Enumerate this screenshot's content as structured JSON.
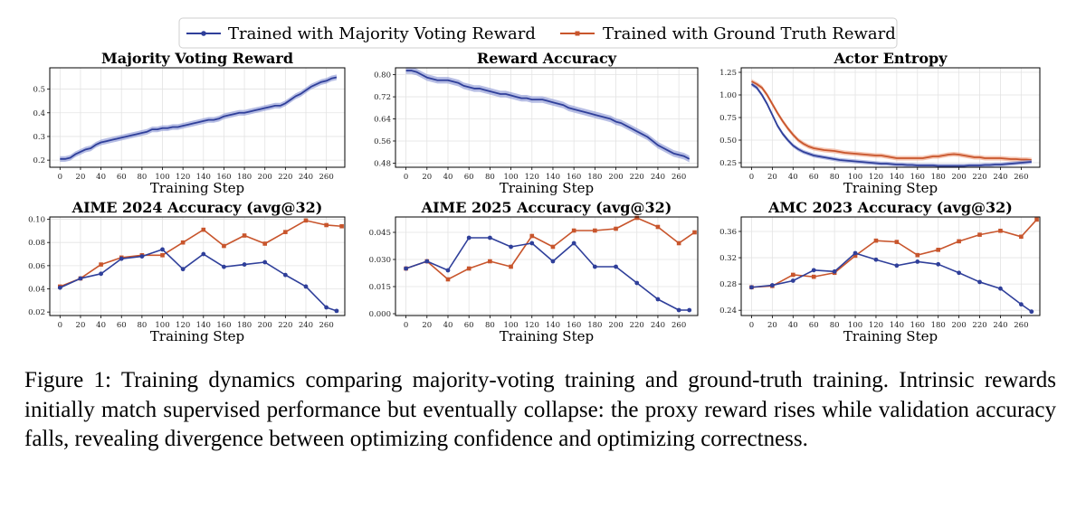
{
  "legend": {
    "majority_label": "Trained with Majority Voting Reward",
    "gt_label": "Trained with Ground Truth Reward"
  },
  "colors": {
    "majority": "#2f3f9a",
    "gt": "#c8552c",
    "band_majority": "#8f9ad6",
    "band_gt": "#f0a88b",
    "grid": "#e3e3e3"
  },
  "caption": "Figure 1: Training dynamics comparing majority-voting training and ground-truth training. Intrinsic rewards initially match supervised performance but eventually collapse: the proxy reward rises while validation accuracy falls, revealing divergence between optimizing confidence and optimizing correctness.",
  "chart_data": [
    {
      "type": "line",
      "title": "Majority Voting Reward",
      "xlabel": "Training Step",
      "ylabel": "",
      "xlim": [
        -10,
        278
      ],
      "ylim": [
        0.17,
        0.59
      ],
      "xticks": [
        0,
        20,
        40,
        60,
        80,
        100,
        120,
        140,
        160,
        180,
        200,
        220,
        240,
        260
      ],
      "yticks": [
        0.2,
        0.3,
        0.4,
        0.5
      ],
      "ytick_labels": [
        "0.2",
        "0.3",
        "0.4",
        "0.5"
      ],
      "grid": true,
      "series": [
        {
          "name": "Trained with Majority Voting Reward",
          "style": "band",
          "x": [
            0,
            5,
            10,
            15,
            20,
            25,
            30,
            35,
            40,
            45,
            50,
            55,
            60,
            65,
            70,
            75,
            80,
            85,
            90,
            95,
            100,
            105,
            110,
            115,
            120,
            125,
            130,
            135,
            140,
            145,
            150,
            155,
            160,
            165,
            170,
            175,
            180,
            185,
            190,
            195,
            200,
            205,
            210,
            215,
            220,
            225,
            230,
            235,
            240,
            245,
            250,
            255,
            260,
            265,
            270
          ],
          "y": [
            0.205,
            0.205,
            0.21,
            0.225,
            0.235,
            0.245,
            0.25,
            0.265,
            0.275,
            0.28,
            0.285,
            0.29,
            0.295,
            0.3,
            0.305,
            0.31,
            0.315,
            0.32,
            0.33,
            0.33,
            0.335,
            0.335,
            0.34,
            0.34,
            0.345,
            0.35,
            0.355,
            0.36,
            0.365,
            0.37,
            0.37,
            0.375,
            0.385,
            0.39,
            0.395,
            0.4,
            0.4,
            0.405,
            0.41,
            0.415,
            0.42,
            0.425,
            0.43,
            0.43,
            0.44,
            0.455,
            0.47,
            0.48,
            0.495,
            0.51,
            0.52,
            0.53,
            0.535,
            0.545,
            0.55
          ],
          "band": 0.012
        }
      ]
    },
    {
      "type": "line",
      "title": "Reward Accuracy",
      "xlabel": "Training Step",
      "ylabel": "",
      "xlim": [
        -10,
        278
      ],
      "ylim": [
        0.465,
        0.825
      ],
      "xticks": [
        0,
        20,
        40,
        60,
        80,
        100,
        120,
        140,
        160,
        180,
        200,
        220,
        240,
        260
      ],
      "yticks": [
        0.48,
        0.56,
        0.64,
        0.72,
        0.8
      ],
      "ytick_labels": [
        "0.48",
        "0.56",
        "0.64",
        "0.72",
        "0.80"
      ],
      "grid": true,
      "series": [
        {
          "name": "Trained with Majority Voting Reward",
          "style": "band",
          "x": [
            0,
            5,
            10,
            15,
            20,
            25,
            30,
            35,
            40,
            45,
            50,
            55,
            60,
            65,
            70,
            75,
            80,
            85,
            90,
            95,
            100,
            105,
            110,
            115,
            120,
            125,
            130,
            135,
            140,
            145,
            150,
            155,
            160,
            165,
            170,
            175,
            180,
            185,
            190,
            195,
            200,
            205,
            210,
            215,
            220,
            225,
            230,
            235,
            240,
            245,
            250,
            255,
            260,
            265,
            270
          ],
          "y": [
            0.815,
            0.815,
            0.81,
            0.8,
            0.79,
            0.785,
            0.78,
            0.78,
            0.78,
            0.775,
            0.77,
            0.76,
            0.755,
            0.75,
            0.75,
            0.745,
            0.74,
            0.735,
            0.73,
            0.73,
            0.725,
            0.72,
            0.715,
            0.715,
            0.71,
            0.71,
            0.71,
            0.705,
            0.7,
            0.695,
            0.69,
            0.68,
            0.675,
            0.67,
            0.665,
            0.66,
            0.655,
            0.65,
            0.645,
            0.64,
            0.63,
            0.625,
            0.615,
            0.605,
            0.595,
            0.585,
            0.575,
            0.56,
            0.545,
            0.535,
            0.525,
            0.515,
            0.51,
            0.505,
            0.495
          ],
          "band": 0.012
        }
      ]
    },
    {
      "type": "line",
      "title": "Actor Entropy",
      "xlabel": "Training Step",
      "ylabel": "",
      "xlim": [
        -10,
        278
      ],
      "ylim": [
        0.2,
        1.3
      ],
      "xticks": [
        0,
        20,
        40,
        60,
        80,
        100,
        120,
        140,
        160,
        180,
        200,
        220,
        240,
        260
      ],
      "yticks": [
        0.25,
        0.5,
        0.75,
        1.0,
        1.25
      ],
      "ytick_labels": [
        "0.25",
        "0.50",
        "0.75",
        "1.00",
        "1.25"
      ],
      "grid": true,
      "series": [
        {
          "name": "Trained with Ground Truth Reward",
          "style": "band",
          "x": [
            0,
            5,
            10,
            15,
            20,
            25,
            30,
            35,
            40,
            45,
            50,
            55,
            60,
            65,
            70,
            75,
            80,
            85,
            90,
            95,
            100,
            105,
            110,
            115,
            120,
            125,
            130,
            135,
            140,
            145,
            150,
            155,
            160,
            165,
            170,
            175,
            180,
            185,
            190,
            195,
            200,
            205,
            210,
            215,
            220,
            225,
            230,
            235,
            240,
            245,
            250,
            255,
            260,
            265,
            270
          ],
          "y": [
            1.15,
            1.12,
            1.08,
            1.0,
            0.9,
            0.8,
            0.71,
            0.63,
            0.56,
            0.5,
            0.46,
            0.43,
            0.41,
            0.4,
            0.39,
            0.385,
            0.38,
            0.37,
            0.36,
            0.355,
            0.35,
            0.345,
            0.34,
            0.335,
            0.33,
            0.33,
            0.32,
            0.31,
            0.3,
            0.3,
            0.3,
            0.3,
            0.3,
            0.3,
            0.31,
            0.32,
            0.32,
            0.33,
            0.34,
            0.345,
            0.34,
            0.33,
            0.32,
            0.31,
            0.31,
            0.3,
            0.3,
            0.3,
            0.3,
            0.295,
            0.29,
            0.29,
            0.285,
            0.285,
            0.28
          ],
          "band": 0.025
        },
        {
          "name": "Trained with Majority Voting Reward",
          "style": "band",
          "x": [
            0,
            5,
            10,
            15,
            20,
            25,
            30,
            35,
            40,
            45,
            50,
            55,
            60,
            65,
            70,
            75,
            80,
            85,
            90,
            95,
            100,
            105,
            110,
            115,
            120,
            125,
            130,
            135,
            140,
            145,
            150,
            155,
            160,
            165,
            170,
            175,
            180,
            185,
            190,
            195,
            200,
            205,
            210,
            215,
            220,
            225,
            230,
            235,
            240,
            245,
            250,
            255,
            260,
            265,
            270
          ],
          "y": [
            1.12,
            1.08,
            1.0,
            0.9,
            0.78,
            0.66,
            0.57,
            0.5,
            0.44,
            0.4,
            0.37,
            0.35,
            0.33,
            0.32,
            0.31,
            0.3,
            0.29,
            0.28,
            0.275,
            0.27,
            0.265,
            0.26,
            0.255,
            0.25,
            0.245,
            0.24,
            0.24,
            0.235,
            0.23,
            0.23,
            0.225,
            0.225,
            0.22,
            0.22,
            0.22,
            0.22,
            0.215,
            0.215,
            0.215,
            0.215,
            0.215,
            0.215,
            0.22,
            0.22,
            0.22,
            0.225,
            0.225,
            0.23,
            0.23,
            0.235,
            0.24,
            0.245,
            0.25,
            0.255,
            0.26
          ],
          "band": 0.022
        }
      ]
    },
    {
      "type": "line",
      "title": "AIME 2024 Accuracy (avg@32)",
      "xlabel": "Training Step",
      "ylabel": "",
      "xlim": [
        -10,
        278
      ],
      "ylim": [
        0.017,
        0.102
      ],
      "xticks": [
        0,
        20,
        40,
        60,
        80,
        100,
        120,
        140,
        160,
        180,
        200,
        220,
        240,
        260
      ],
      "yticks": [
        0.02,
        0.04,
        0.06,
        0.08,
        0.1
      ],
      "ytick_labels": [
        "0.02",
        "0.04",
        "0.06",
        "0.08",
        "0.10"
      ],
      "grid": true,
      "series": [
        {
          "name": "Trained with Ground Truth Reward",
          "style": "markers",
          "x": [
            0,
            20,
            40,
            60,
            80,
            100,
            120,
            140,
            160,
            180,
            200,
            220,
            240,
            260,
            275
          ],
          "y": [
            0.042,
            0.049,
            0.061,
            0.067,
            0.069,
            0.069,
            0.08,
            0.091,
            0.077,
            0.086,
            0.079,
            0.089,
            0.099,
            0.095,
            0.094
          ]
        },
        {
          "name": "Trained with Majority Voting Reward",
          "style": "markers",
          "x": [
            0,
            20,
            40,
            60,
            80,
            100,
            120,
            140,
            160,
            180,
            200,
            220,
            240,
            260,
            270
          ],
          "y": [
            0.041,
            0.049,
            0.053,
            0.066,
            0.068,
            0.074,
            0.057,
            0.07,
            0.059,
            0.061,
            0.063,
            0.052,
            0.042,
            0.024,
            0.021
          ]
        }
      ]
    },
    {
      "type": "line",
      "title": "AIME 2025 Accuracy (avg@32)",
      "xlabel": "Training Step",
      "ylabel": "",
      "xlim": [
        -10,
        278
      ],
      "ylim": [
        -0.001,
        0.0535
      ],
      "xticks": [
        0,
        20,
        40,
        60,
        80,
        100,
        120,
        140,
        160,
        180,
        200,
        220,
        240,
        260
      ],
      "yticks": [
        0.0,
        0.015,
        0.03,
        0.045
      ],
      "ytick_labels": [
        "0.000",
        "0.015",
        "0.030",
        "0.045"
      ],
      "grid": true,
      "series": [
        {
          "name": "Trained with Ground Truth Reward",
          "style": "markers",
          "x": [
            0,
            20,
            40,
            60,
            80,
            100,
            120,
            140,
            160,
            180,
            200,
            220,
            240,
            260,
            275
          ],
          "y": [
            0.025,
            0.029,
            0.019,
            0.025,
            0.029,
            0.026,
            0.043,
            0.037,
            0.046,
            0.046,
            0.047,
            0.053,
            0.048,
            0.039,
            0.045
          ]
        },
        {
          "name": "Trained with Majority Voting Reward",
          "style": "markers",
          "x": [
            0,
            20,
            40,
            60,
            80,
            100,
            120,
            140,
            160,
            180,
            200,
            220,
            240,
            260,
            270
          ],
          "y": [
            0.025,
            0.029,
            0.024,
            0.042,
            0.042,
            0.037,
            0.039,
            0.029,
            0.039,
            0.026,
            0.026,
            0.017,
            0.008,
            0.002,
            0.002
          ]
        }
      ]
    },
    {
      "type": "line",
      "title": "AMC 2023 Accuracy (avg@32)",
      "xlabel": "Training Step",
      "ylabel": "",
      "xlim": [
        -10,
        278
      ],
      "ylim": [
        0.232,
        0.382
      ],
      "xticks": [
        0,
        20,
        40,
        60,
        80,
        100,
        120,
        140,
        160,
        180,
        200,
        220,
        240,
        260
      ],
      "yticks": [
        0.24,
        0.28,
        0.32,
        0.36
      ],
      "ytick_labels": [
        "0.24",
        "0.28",
        "0.32",
        "0.36"
      ],
      "grid": true,
      "series": [
        {
          "name": "Trained with Ground Truth Reward",
          "style": "markers",
          "x": [
            0,
            20,
            40,
            60,
            80,
            100,
            120,
            140,
            160,
            180,
            200,
            220,
            240,
            260,
            275
          ],
          "y": [
            0.275,
            0.277,
            0.294,
            0.291,
            0.297,
            0.323,
            0.346,
            0.344,
            0.324,
            0.332,
            0.345,
            0.355,
            0.361,
            0.352,
            0.378
          ]
        },
        {
          "name": "Trained with Majority Voting Reward",
          "style": "markers",
          "x": [
            0,
            20,
            40,
            60,
            80,
            100,
            120,
            140,
            160,
            180,
            200,
            220,
            240,
            260,
            270
          ],
          "y": [
            0.275,
            0.278,
            0.285,
            0.301,
            0.299,
            0.327,
            0.317,
            0.308,
            0.314,
            0.31,
            0.297,
            0.283,
            0.273,
            0.249,
            0.238
          ]
        }
      ]
    }
  ]
}
